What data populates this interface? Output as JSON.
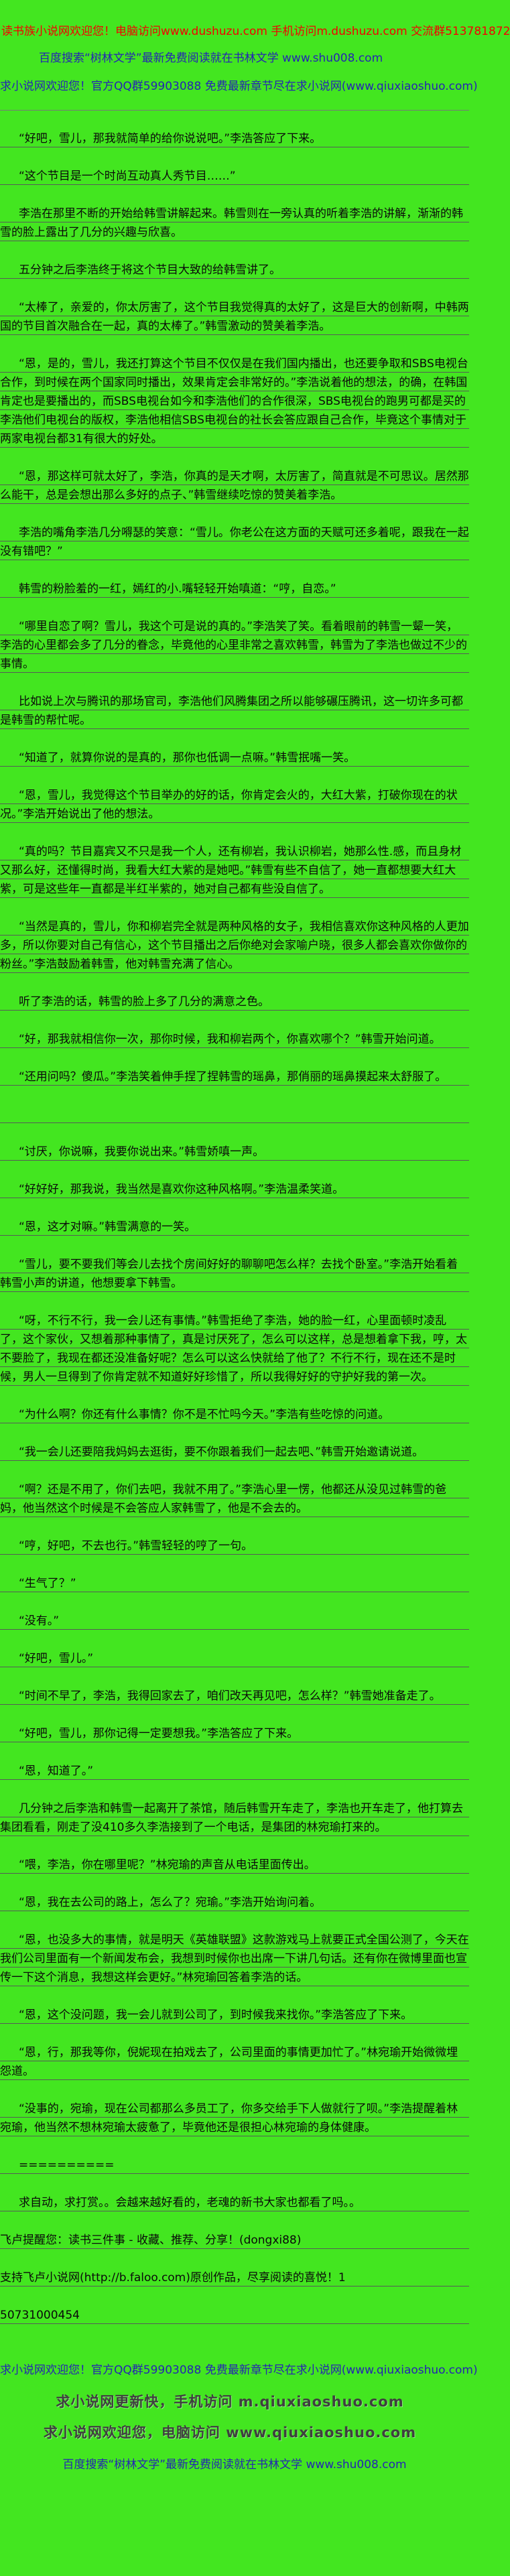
{
  "header": {
    "red_line": "读书族小说网欢迎您！电脑访问www.dushuzu.com 手机访问m.dushuzu.com 交流群513781872",
    "blue_line_shulin": "百度搜索“树林文学”最新免费阅读就在书林文学 www.shu008.com",
    "blue_line_qiu": "求小说网欢迎您！官方QQ群59903088 免费最新章节尽在求小说网(www.qiuxiaoshuo.com)"
  },
  "colors": {
    "background": "#43e620",
    "red_text": "#f40000",
    "blue_text": "#2424b4",
    "body_text": "#0a0a0a",
    "rule_line": "#565a58",
    "footer_big_text": "#3f3f3f"
  },
  "paragraphs": [
    {
      "style": "indent",
      "text": "“好吧，雪儿，那我就简单的给你说说吧。”李浩答应了下来。"
    },
    {
      "style": "indent",
      "text": "“这个节目是一个时尚互动真人秀节目……”"
    },
    {
      "style": "indent",
      "text": "李浩在那里不断的开始给韩雪讲解起来。韩雪则在一旁认真的听着李浩的讲解，渐渐的韩雪的脸上露出了几分的兴趣与欣喜。"
    },
    {
      "style": "indent",
      "text": "五分钟之后李浩终于将这个节目大致的给韩雪讲了。"
    },
    {
      "style": "indent",
      "text": "“太棒了，亲爱的，你太厉害了，这个节目我觉得真的太好了，这是巨大的创新啊，中韩两国的节目首次融合在一起，真的太棒了。”韩雪激动的赞美着李浩。"
    },
    {
      "style": "indent",
      "text": "“恩，是的，雪儿，我还打算这个节目不仅仅是在我们国内播出，也还要争取和SBS电视台合作，到时候在两个国家同时播出，效果肯定会非常好的。”李浩说着他的想法，的确，在韩国肯定也是要播出的，而SBS电视台如今和李浩他们的合作很深，SBS电视台的跑男可都是买的李浩他们电视台的版权，李浩他相信SBS电视台的社长会答应跟自己合作，毕竟这个事情对于两家电视台都31有很大的好处。"
    },
    {
      "style": "indent",
      "text": "“恩，那这样可就太好了，李浩，你真的是天才啊，太厉害了，简直就是不可思议。居然那么能干，总是会想出那么多好的点子、”韩雪继续吃惊的赞美着李浩。"
    },
    {
      "style": "indent",
      "text": "李浩的嘴角李浩几分嘚瑟的笑意：“雪儿。你老公在这方面的天赋可还多着呢，跟我在一起没有错吧？”"
    },
    {
      "style": "indent",
      "text": "韩雪的粉脸羞的一红，嫣红的小.嘴轻轻开始嗔道：“哼，自恋。”"
    },
    {
      "style": "indent",
      "text": "“哪里自恋了啊？雪儿，我这个可是说的真的。”李浩笑了笑。看着眼前的韩雪一颦一笑，李浩的心里都会多了几分的眷念，毕竟他的心里非常之喜欢韩雪，韩雪为了李浩也做过不少的事情。"
    },
    {
      "style": "indent",
      "text": "比如说上次与腾讯的那场官司，李浩他们风腾集团之所以能够碾压腾讯，这一切许多可都是韩雪的帮忙呢。"
    },
    {
      "style": "indent",
      "text": "“知道了，就算你说的是真的，那你也低调一点嘛。”韩雪抿嘴一笑。"
    },
    {
      "style": "indent",
      "text": "“恩，雪儿，我觉得这个节目举办的好的话，你肯定会火的，大红大紫，打破你现在的状况。”李浩开始说出了他的想法。"
    },
    {
      "style": "indent",
      "text": "“真的吗？节目嘉宾又不只是我一个人，还有柳岩，我认识柳岩，她那么性.感，而且身材又那么好，还懂得时尚，我看大红大紫的是她吧。”韩雪有些不自信了，她一直都想要大红大紫，可是这些年一直都是半红半紫的，她对自己都有些没自信了。"
    },
    {
      "style": "indent",
      "text": "“当然是真的，雪儿，你和柳岩完全就是两种风格的女子，我相信喜欢你这种风格的人更加多，所以你要对自己有信心，这个节目播出之后你绝对会家喻户晓，很多人都会喜欢你做你的粉丝。”李浩鼓励着韩雪，他对韩雪充满了信心。"
    },
    {
      "style": "indent",
      "text": "听了李浩的话，韩雪的脸上多了几分的满意之色。"
    },
    {
      "style": "indent",
      "text": "“好，那我就相信你一次，那你时候，我和柳岩两个，你喜欢哪个？”韩雪开始问道。"
    },
    {
      "style": "indent",
      "text": "“还用问吗？傻瓜。”李浩笑着伸手捏了捏韩雪的瑶鼻，那俏丽的瑶鼻摸起来太舒服了。"
    },
    {
      "style": "rule",
      "text": ""
    },
    {
      "style": "indent",
      "text": "“讨厌，你说嘛，我要你说出来。”韩雪娇嗔一声。"
    },
    {
      "style": "indent",
      "text": "“好好好，那我说，我当然是喜欢你这种风格啊。”李浩温柔笑道。"
    },
    {
      "style": "indent",
      "text": "“恩，这才对嘛。”韩雪满意的一笑。"
    },
    {
      "style": "indent",
      "text": "“雪儿，要不要我们等会儿去找个房间好好的聊聊吧怎么样？去找个卧室。”李浩开始看着韩雪小声的讲道，他想要拿下韩雪。"
    },
    {
      "style": "indent",
      "text": "“呀，不行不行，我一会儿还有事情。”韩雪拒绝了李浩，她的脸一红，心里面顿时凌乱了，这个家伙，又想着那种事情了，真是讨厌死了，怎么可以这样，总是想着拿下我，哼，太不要脸了，我现在都还没准备好呢？怎么可以这么快就给了他了？不行不行，现在还不是时候，男人一旦得到了你肯定就不知道好好珍惜了，所以我得好好的守护好我的第一次。"
    },
    {
      "style": "indent",
      "text": "“为什么啊？你还有什么事情？你不是不忙吗今天。”李浩有些吃惊的问道。"
    },
    {
      "style": "indent",
      "text": "“我一会儿还要陪我妈妈去逛街，要不你跟着我们一起去吧、”韩雪开始邀请说道。"
    },
    {
      "style": "indent",
      "text": "“啊？还是不用了，你们去吧，我就不用了。”李浩心里一愣，他都还从没见过韩雪的爸妈，他当然这个时候是不会答应人家韩雪了，他是不会去的。"
    },
    {
      "style": "indent",
      "text": "“哼，好吧，不去也行。”韩雪轻轻的哼了一句。"
    },
    {
      "style": "indent",
      "text": "“生气了？”"
    },
    {
      "style": "indent",
      "text": "“没有。”"
    },
    {
      "style": "indent",
      "text": "“好吧，雪儿。”"
    },
    {
      "style": "indent",
      "text": "“时间不早了，李浩，我得回家去了，咱们改天再见吧，怎么样？”韩雪她准备走了。"
    },
    {
      "style": "indent",
      "text": "“好吧，雪儿，那你记得一定要想我。”李浩答应了下来。"
    },
    {
      "style": "indent",
      "text": "“恩，知道了。”"
    },
    {
      "style": "indent",
      "text": "几分钟之后李浩和韩雪一起离开了茶馆，随后韩雪开车走了，李浩也开车走了，他打算去集团看看，刚走了没410多久李浩接到了一个电话，是集团的林宛瑜打来的。"
    },
    {
      "style": "indent",
      "text": "“喂，李浩，你在哪里呢？”林宛瑜的声音从电话里面传出。"
    },
    {
      "style": "indent",
      "text": "“恩，我在去公司的路上，怎么了？宛瑜。”李浩开始询问着。"
    },
    {
      "style": "indent",
      "text": "“恩，也没多大的事情，就是明天《英雄联盟》这款游戏马上就要正式全国公测了，今天在我们公司里面有一个新闻发布会，我想到时候你也出席一下讲几句话。还有你在微博里面也宣传一下这个消息，我想这样会更好。”林宛瑜回答着李浩的话。"
    },
    {
      "style": "indent",
      "text": "“恩，这个没问题，我一会儿就到公司了，到时候我来找你。”李浩答应了下来。"
    },
    {
      "style": "indent",
      "text": "“恩，行，那我等你，倪妮现在拍戏去了，公司里面的事情更加忙了。”林宛瑜开始微微埋怨道。"
    },
    {
      "style": "indent",
      "text": "“没事的，宛瑜，现在公司都那么多员工了，你多交给手下人做就行了呗。”李浩提醒着林宛瑜，他当然不想林宛瑜太疲惫了，毕竟他还是很担心林宛瑜的身体健康。"
    },
    {
      "style": "indent",
      "text": "=========="
    },
    {
      "style": "indent",
      "text": "求自动，求打赏。。会越来越好看的，老魂的新书大家也都看了吗。。"
    },
    {
      "style": "flush",
      "text": "飞卢提醒您：读书三件事 - 收藏、推荐、分享！(dongxi88)"
    },
    {
      "style": "flush",
      "text": "支持飞卢小说网(http://b.faloo.com)原创作品，尽享阅读的喜悦！1"
    },
    {
      "style": "flush",
      "text": "50731000454"
    }
  ],
  "footer": {
    "blue_line_qiu": "求小说网欢迎您！官方QQ群59903088 免费最新章节尽在求小说网(www.qiuxiaoshuo.com)",
    "big_line_mobile": "求小说网更新快，手机访问 m.qiuxiaoshuo.com",
    "big_line_pc": "求小说网欢迎您，电脑访问 www.qiuxiaoshuo.com",
    "blue_line_shulin": "百度搜索“树林文学”最新免费阅读就在书林文学 www.shu008.com"
  }
}
